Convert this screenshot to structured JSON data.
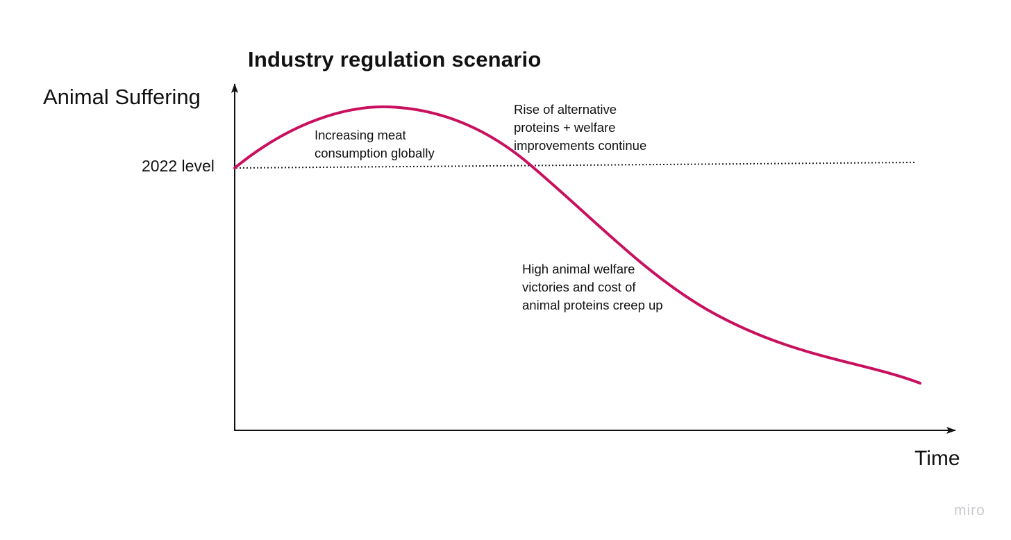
{
  "title": "Industry regulation scenario",
  "y_axis_label": "Animal Suffering",
  "x_axis_label": "Time",
  "reference_line_label": "2022 level",
  "annotations": [
    {
      "lines": [
        "Increasing meat",
        "consumption globally"
      ]
    },
    {
      "lines": [
        "Rise of alternative",
        "proteins + welfare",
        "improvements continue"
      ]
    },
    {
      "lines": [
        "High animal welfare",
        "victories and cost of",
        "animal proteins creep up"
      ]
    }
  ],
  "watermark": "miro",
  "colors": {
    "curve": "#c8105f",
    "axis": "#111111",
    "reference_line": "#222222",
    "watermark": "#c9c9cf"
  }
}
